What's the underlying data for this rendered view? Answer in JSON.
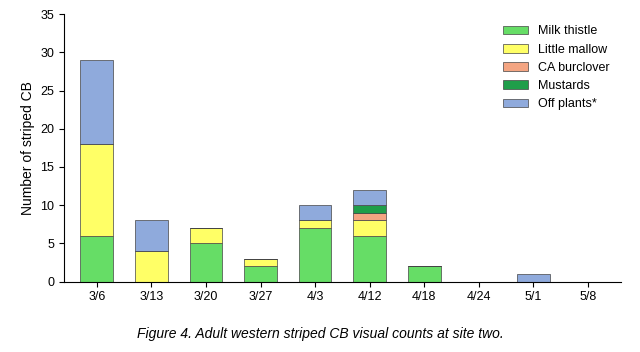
{
  "chart_data": {
    "type": "bar",
    "stacked": true,
    "title": "Figure 4. Adult western striped CB visual counts at site two.",
    "y_label": "Number of striped CB",
    "categories": [
      "3/6",
      "3/13",
      "3/20",
      "3/27",
      "4/3",
      "4/12",
      "4/18",
      "4/24",
      "5/1",
      "5/8"
    ],
    "series": [
      {
        "name": "Milk thistle",
        "color": "#66dd66",
        "values": [
          6,
          0,
          5,
          2,
          7,
          6,
          2,
          0,
          0,
          0
        ]
      },
      {
        "name": "Little mallow",
        "color": "#ffff66",
        "values": [
          12,
          4,
          2,
          1,
          1,
          2,
          0,
          0,
          0,
          0
        ]
      },
      {
        "name": "CA burclover",
        "color": "#f4a582",
        "values": [
          0,
          0,
          0,
          0,
          0,
          1,
          0,
          0,
          0,
          0
        ]
      },
      {
        "name": "Mustards",
        "color": "#1f9e4a",
        "values": [
          0,
          0,
          0,
          0,
          0,
          1,
          0,
          0,
          0,
          0
        ]
      },
      {
        "name": "Off plants*",
        "color": "#8faadc",
        "values": [
          11,
          4,
          0,
          0,
          2,
          2,
          0,
          0,
          1,
          0
        ]
      }
    ],
    "ylim": [
      0,
      35
    ],
    "yticks": [
      0,
      5,
      10,
      15,
      20,
      25,
      30,
      35
    ],
    "grid": false,
    "legend": "upper right"
  }
}
